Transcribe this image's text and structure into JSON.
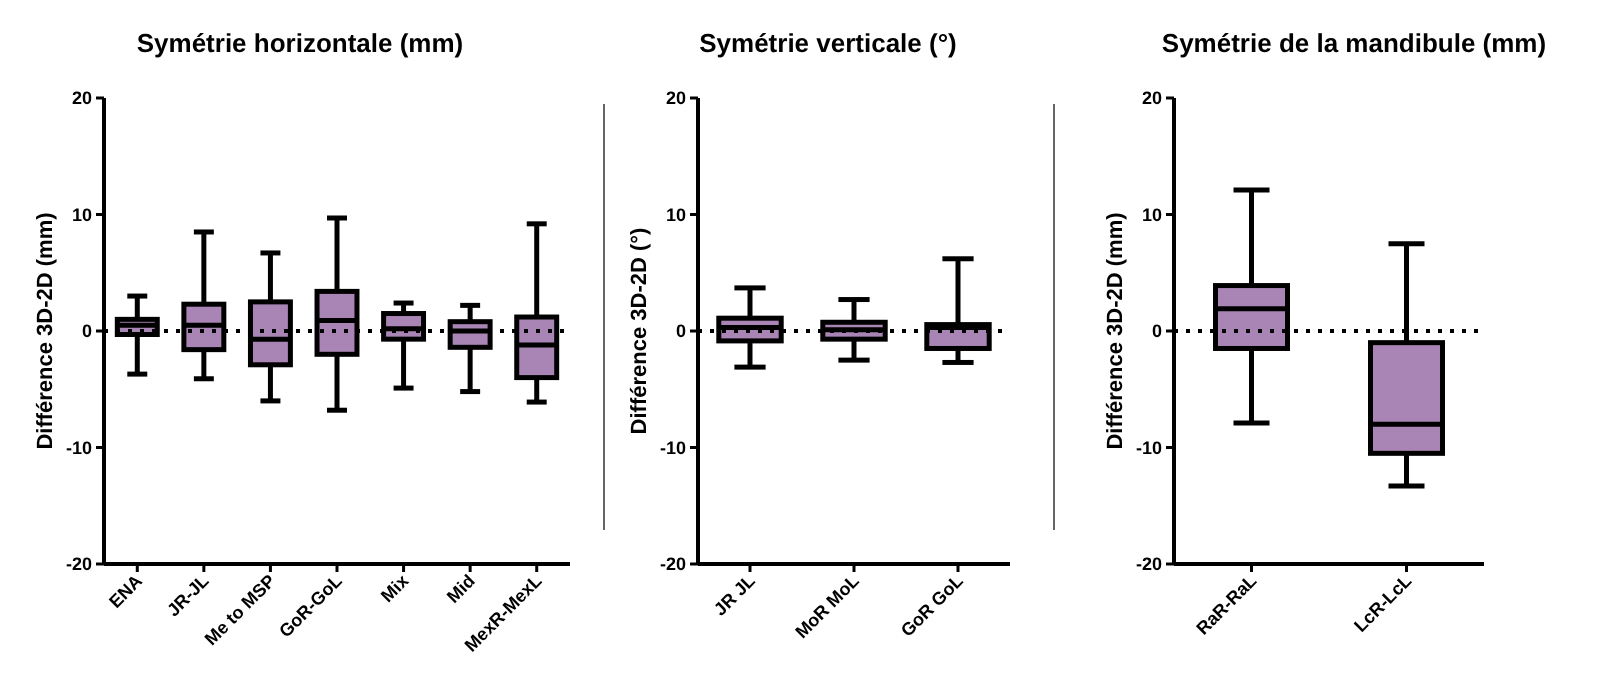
{
  "chart_data": [
    {
      "type": "box",
      "title": "Symétrie horizontale (mm)",
      "ylabel": "Différence 3D-2D (mm)",
      "categories": [
        "ENA",
        "JR-JL",
        "Me to MSP",
        "GoR-GoL",
        "Mix",
        "Mid",
        "MexR-MexL"
      ],
      "color": "#a985b5",
      "ylim": [
        -20,
        20
      ],
      "yticks": [
        -20,
        -10,
        0,
        10,
        20
      ],
      "ref_lines": [
        {
          "axis": "y",
          "value": 0,
          "line_style": "dotted"
        }
      ],
      "boxes": [
        {
          "low": -3.7,
          "q1": -0.3,
          "median": 0.5,
          "q3": 1.0,
          "high": 3.0
        },
        {
          "low": -4.1,
          "q1": -1.6,
          "median": 0.5,
          "q3": 2.3,
          "high": 8.5
        },
        {
          "low": -6.0,
          "q1": -2.9,
          "median": -0.7,
          "q3": 2.5,
          "high": 6.7
        },
        {
          "low": -6.8,
          "q1": -2.0,
          "median": 0.9,
          "q3": 3.4,
          "high": 9.7
        },
        {
          "low": -4.9,
          "q1": -0.7,
          "median": 0.2,
          "q3": 1.5,
          "high": 2.4
        },
        {
          "low": -5.2,
          "q1": -1.4,
          "median": 0,
          "q3": 0.8,
          "high": 2.2
        },
        {
          "low": -6.1,
          "q1": -4.0,
          "median": -1.2,
          "q3": 1.2,
          "high": 9.2
        }
      ]
    },
    {
      "type": "box",
      "title": "Symétrie verticale (°)",
      "ylabel": "Différence 3D-2D (°)",
      "categories": [
        "JR JL",
        "MoR MoL",
        "GoR GoL"
      ],
      "color": "#a985b5",
      "ylim": [
        -20,
        20
      ],
      "yticks": [
        -20,
        -10,
        0,
        10,
        20
      ],
      "ref_lines": [
        {
          "axis": "y",
          "value": 0,
          "line_style": "dotted"
        }
      ],
      "boxes": [
        {
          "low": -3.1,
          "q1": -0.85,
          "median": 0.3,
          "q3": 1.1,
          "high": 3.7
        },
        {
          "low": -2.5,
          "q1": -0.7,
          "median": 0.1,
          "q3": 0.75,
          "high": 2.7
        },
        {
          "low": -2.7,
          "q1": -1.5,
          "median": 0.3,
          "q3": 0.55,
          "high": 6.2
        }
      ]
    },
    {
      "type": "box",
      "title": "Symétrie de la mandibule (mm)",
      "ylabel": "Différence 3D-2D (mm)",
      "categories": [
        "RaR-RaL",
        "LcR-LcL"
      ],
      "color": "#a985b5",
      "ylim": [
        -20,
        20
      ],
      "yticks": [
        -20,
        -10,
        0,
        10,
        20
      ],
      "ref_lines": [
        {
          "axis": "y",
          "value": 0,
          "line_style": "dotted"
        }
      ],
      "boxes": [
        {
          "low": -7.9,
          "q1": -1.5,
          "median": 1.9,
          "q3": 3.9,
          "high": 12.1
        },
        {
          "low": -13.3,
          "q1": -10.5,
          "median": -8.0,
          "q3": -1.0,
          "high": 7.5
        }
      ]
    }
  ]
}
